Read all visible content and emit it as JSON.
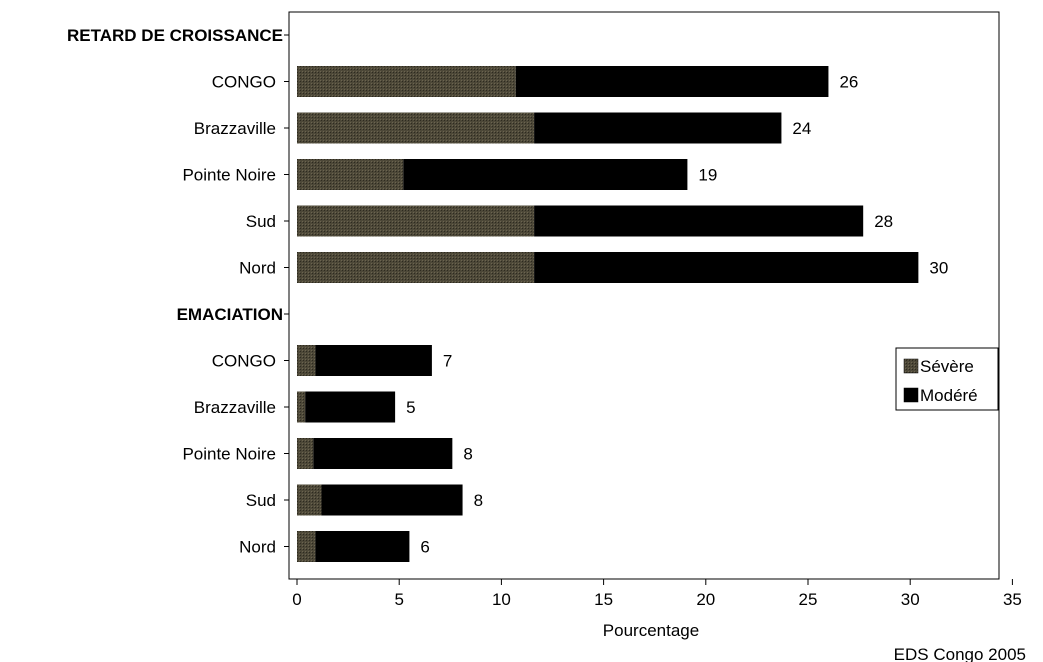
{
  "chart_data": {
    "type": "bar",
    "orientation": "horizontal",
    "stacked": true,
    "groups": [
      {
        "label": "RETARD DE CROISSANCE",
        "categories": [
          "CONGO",
          "Brazzaville",
          "Pointe Noire",
          "Sud",
          "Nord"
        ],
        "series": [
          {
            "name": "Sévère",
            "values": [
              10.7,
              11.6,
              5.2,
              11.6,
              11.6
            ]
          },
          {
            "name": "Modéré",
            "values": [
              15.3,
              12.1,
              13.9,
              16.1,
              18.8
            ]
          }
        ],
        "totals": [
          "26",
          "24",
          "19",
          "28",
          "30"
        ]
      },
      {
        "label": "EMACIATION",
        "categories": [
          "CONGO",
          "Brazzaville",
          "Pointe Noire",
          "Sud",
          "Nord"
        ],
        "series": [
          {
            "name": "Sévère",
            "values": [
              0.9,
              0.4,
              0.8,
              1.2,
              0.9
            ]
          },
          {
            "name": "Modéré",
            "values": [
              5.7,
              4.4,
              6.8,
              6.9,
              4.6
            ]
          }
        ],
        "totals": [
          "7",
          "5",
          "8",
          "8",
          "6"
        ]
      }
    ],
    "xlabel": "Pourcentage",
    "xlim": [
      0,
      35
    ],
    "xticks": [
      "0",
      "5",
      "10",
      "15",
      "20",
      "25",
      "30",
      "35"
    ],
    "legend": {
      "placement": "right",
      "items": [
        {
          "name": "Sévère",
          "color": "#4a4535"
        },
        {
          "name": "Modéré",
          "color": "#000000"
        }
      ]
    },
    "grid": false
  },
  "source_note": "EDS Congo 2005"
}
